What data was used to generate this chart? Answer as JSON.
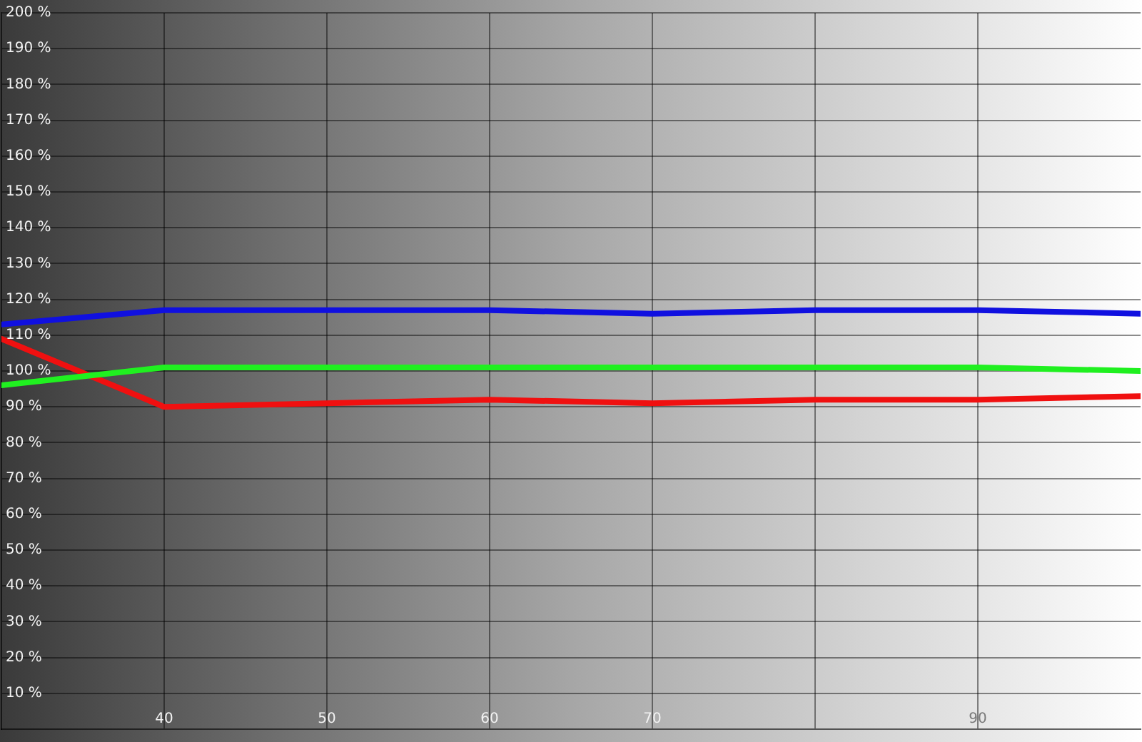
{
  "chart_data": {
    "type": "line",
    "x": [
      30,
      40,
      50,
      60,
      70,
      80,
      90,
      100
    ],
    "series": [
      {
        "color": "#1010e0",
        "values": [
          113,
          117,
          117,
          117,
          116,
          117,
          117,
          116
        ]
      },
      {
        "color": "#20f020",
        "values": [
          96,
          101,
          101,
          101,
          101,
          101,
          101,
          100
        ]
      },
      {
        "color": "#f01010",
        "values": [
          109,
          90,
          91,
          92,
          91,
          92,
          92,
          93
        ]
      }
    ],
    "xlim": [
      30,
      100
    ],
    "xticks": [
      40,
      50,
      60,
      70,
      {
        "value": 80,
        "label": null
      },
      90
    ],
    "ylim": [
      0,
      200
    ],
    "yticks": [
      {
        "value": 10,
        "label": "10 %"
      },
      {
        "value": 20,
        "label": "20 %"
      },
      {
        "value": 30,
        "label": "30 %"
      },
      {
        "value": 40,
        "label": "40 %"
      },
      {
        "value": 50,
        "label": "50 %"
      },
      {
        "value": 60,
        "label": "60 %"
      },
      {
        "value": 70,
        "label": "70 %"
      },
      {
        "value": 80,
        "label": "80 %"
      },
      {
        "value": 90,
        "label": "90 %"
      },
      {
        "value": 100,
        "label": "100 %"
      },
      {
        "value": 110,
        "label": "110 %"
      },
      {
        "value": 120,
        "label": "120 %"
      },
      {
        "value": 130,
        "label": "130 %"
      },
      {
        "value": 140,
        "label": "140 %"
      },
      {
        "value": 150,
        "label": "150 %"
      },
      {
        "value": 160,
        "label": "160 %"
      },
      {
        "value": 170,
        "label": "170 %"
      },
      {
        "value": 180,
        "label": "180 %"
      },
      {
        "value": 190,
        "label": "190 %"
      },
      {
        "value": 200,
        "label": "200 %"
      }
    ],
    "grid": true,
    "legend": false,
    "marker": "none",
    "line_style": "solid"
  }
}
